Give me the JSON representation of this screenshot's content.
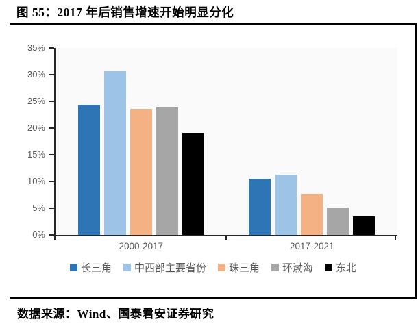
{
  "figure": {
    "title": "图 55：2017 年后销售增速开始明显分化",
    "source": "数据来源：Wind、国泰君安证券研究"
  },
  "colors": {
    "frame_border": "#000000",
    "axis": "#262626",
    "plot_background": "#FAFAFA",
    "label_text": "#595959"
  },
  "chart_data": {
    "type": "bar",
    "title": "图 55：2017 年后销售增速开始明显分化",
    "categories": [
      "2000-2017",
      "2017-2021"
    ],
    "series": [
      {
        "name": "长三角",
        "color": "#2E75B6",
        "values": [
          24.4,
          10.5
        ]
      },
      {
        "name": "中西部主要省份",
        "color": "#9DC3E6",
        "values": [
          30.6,
          11.3
        ]
      },
      {
        "name": "珠三角",
        "color": "#F4B183",
        "values": [
          23.6,
          7.7
        ]
      },
      {
        "name": "环渤海",
        "color": "#A6A6A6",
        "values": [
          24.0,
          5.1
        ]
      },
      {
        "name": "东北",
        "color": "#000000",
        "values": [
          19.1,
          3.5
        ]
      }
    ],
    "xlabel": "",
    "ylabel": "",
    "ylim": [
      0,
      35
    ],
    "ytick_step": 5,
    "ytick_suffix": "%",
    "grid": false,
    "legend_position": "bottom"
  }
}
